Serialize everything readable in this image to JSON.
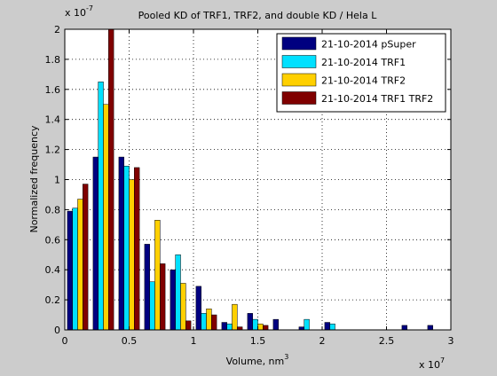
{
  "chart_data": {
    "type": "bar",
    "title": "Pooled KD of TRF1, TRF2, and double KD / Hela L",
    "xlabel": "Volume, nm",
    "xlabel_superscript": "3",
    "ylabel": "Normalized frequency",
    "x_exponent": "7",
    "y_exponent": "-7",
    "exponent_base": "x 10",
    "xlim": [
      0,
      3
    ],
    "ylim": [
      0,
      2
    ],
    "xticks": [
      "0",
      "0.5",
      "1",
      "1.5",
      "2",
      "2.5",
      "3"
    ],
    "yticks": [
      "0",
      "0.2",
      "0.4",
      "0.6",
      "0.8",
      "1",
      "1.2",
      "1.4",
      "1.6",
      "1.8",
      "2"
    ],
    "grid": true,
    "legend_position": "top-right",
    "bin_centers": [
      0.1,
      0.3,
      0.5,
      0.7,
      0.9,
      1.1,
      1.3,
      1.5,
      1.7,
      1.9,
      2.1,
      2.3,
      2.5,
      2.7,
      2.9
    ],
    "series": [
      {
        "name": "21-10-2014 pSuper",
        "color": "#000080",
        "values": [
          0.79,
          1.15,
          1.15,
          0.57,
          0.4,
          0.29,
          0.05,
          0.11,
          0.07,
          0.02,
          0.05,
          0,
          0,
          0.03,
          0.03
        ]
      },
      {
        "name": "21-10-2014 TRF1",
        "color": "#00e0ff",
        "values": [
          0.81,
          1.65,
          1.09,
          0.32,
          0.5,
          0.11,
          0.04,
          0.07,
          0,
          0.07,
          0.04,
          0,
          0,
          0,
          0
        ]
      },
      {
        "name": "21-10-2014 TRF2",
        "color": "#ffd000",
        "values": [
          0.87,
          1.5,
          1.0,
          0.73,
          0.31,
          0.14,
          0.17,
          0.04,
          0,
          0,
          0,
          0,
          0,
          0,
          0
        ]
      },
      {
        "name": "21-10-2014 TRF1 TRF2",
        "color": "#800000",
        "values": [
          0.97,
          2.0,
          1.08,
          0.44,
          0.06,
          0.1,
          0.02,
          0.03,
          0,
          0,
          0,
          0,
          0,
          0,
          0
        ]
      }
    ]
  }
}
